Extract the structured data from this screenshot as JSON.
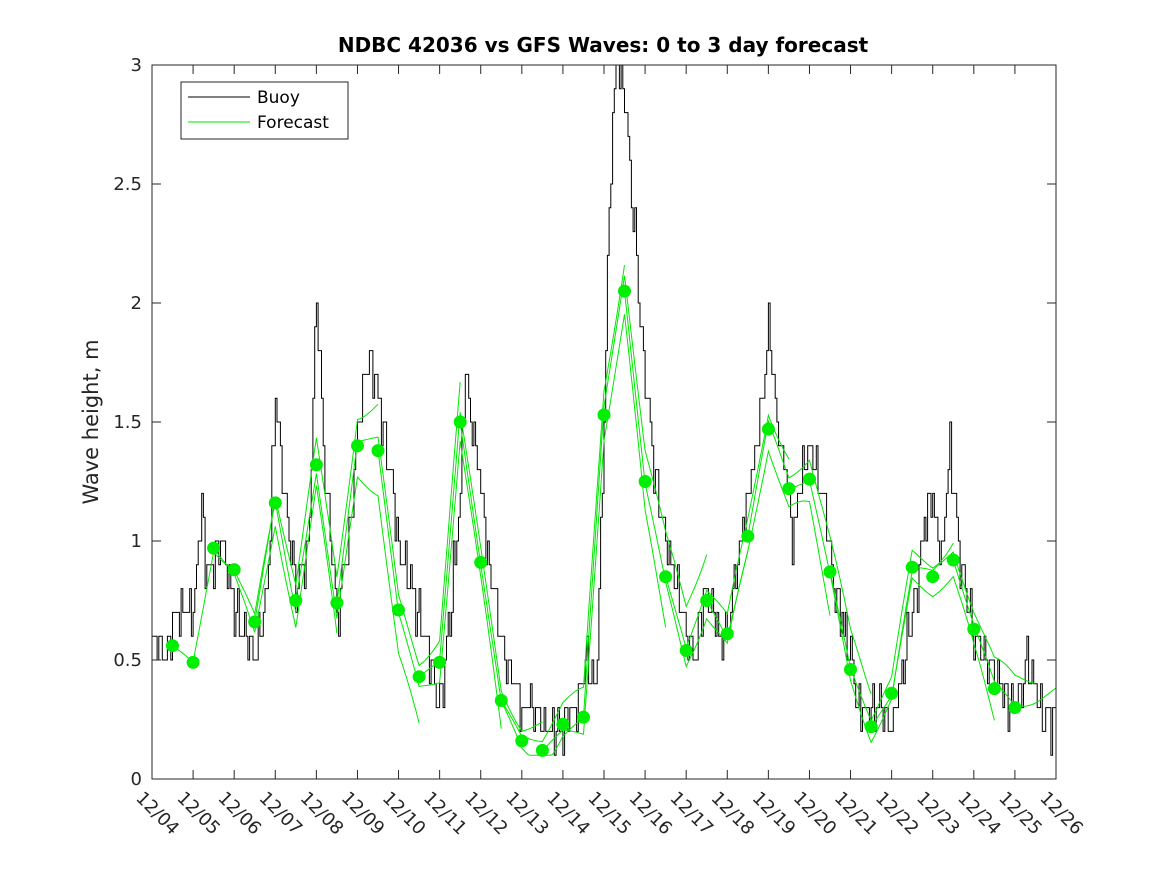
{
  "chart_data": {
    "type": "line",
    "title": "NDBC 42036 vs GFS Waves: 0 to 3 day forecast",
    "xlabel": "",
    "ylabel": "Wave height, m",
    "xlim": [
      0,
      22
    ],
    "ylim": [
      0,
      3
    ],
    "yticks": [
      0,
      0.5,
      1,
      1.5,
      2,
      2.5,
      3
    ],
    "xtick_labels": [
      "12/04",
      "12/05",
      "12/06",
      "12/07",
      "12/08",
      "12/09",
      "12/10",
      "12/11",
      "12/12",
      "12/13",
      "12/14",
      "12/15",
      "12/16",
      "12/17",
      "12/18",
      "12/19",
      "12/20",
      "12/21",
      "12/22",
      "12/23",
      "12/24",
      "12/25",
      "12/26"
    ],
    "legend": {
      "position": "top-left",
      "entries": [
        {
          "name": "Buoy",
          "color": "#000000"
        },
        {
          "name": "Forecast",
          "color": "#00e600"
        }
      ]
    },
    "colors": {
      "buoy": "#000000",
      "forecast": "#00e600",
      "marker": "#00ee00"
    },
    "buoy_anchors": [
      [
        0,
        0.6
      ],
      [
        0.3,
        0.5
      ],
      [
        0.6,
        0.7
      ],
      [
        1.0,
        0.7
      ],
      [
        1.1,
        0.9
      ],
      [
        1.2,
        1.2
      ],
      [
        1.3,
        0.9
      ],
      [
        1.5,
        0.9
      ],
      [
        1.7,
        1.0
      ],
      [
        2.0,
        0.7
      ],
      [
        2.3,
        0.6
      ],
      [
        2.5,
        0.5
      ],
      [
        2.8,
        0.8
      ],
      [
        3.0,
        1.6
      ],
      [
        3.2,
        1.2
      ],
      [
        3.5,
        0.8
      ],
      [
        3.8,
        1.0
      ],
      [
        4.0,
        2.0
      ],
      [
        4.2,
        1.3
      ],
      [
        4.5,
        0.7
      ],
      [
        4.8,
        1.0
      ],
      [
        5.0,
        1.5
      ],
      [
        5.3,
        1.8
      ],
      [
        5.5,
        1.6
      ],
      [
        5.8,
        1.3
      ],
      [
        6.0,
        1.0
      ],
      [
        6.3,
        0.8
      ],
      [
        6.6,
        0.6
      ],
      [
        7.0,
        0.3
      ],
      [
        7.2,
        0.6
      ],
      [
        7.5,
        1.2
      ],
      [
        7.6,
        1.7
      ],
      [
        7.8,
        1.5
      ],
      [
        8.0,
        1.2
      ],
      [
        8.3,
        0.8
      ],
      [
        8.6,
        0.5
      ],
      [
        9.0,
        0.3
      ],
      [
        9.3,
        0.3
      ],
      [
        9.6,
        0.2
      ],
      [
        10.0,
        0.2
      ],
      [
        10.3,
        0.3
      ],
      [
        10.6,
        0.5
      ],
      [
        10.8,
        0.4
      ],
      [
        11.0,
        1.5
      ],
      [
        11.15,
        2.6
      ],
      [
        11.3,
        3.0
      ],
      [
        11.5,
        2.9
      ],
      [
        11.7,
        2.4
      ],
      [
        11.9,
        1.9
      ],
      [
        12.2,
        1.3
      ],
      [
        12.5,
        1.0
      ],
      [
        12.8,
        0.8
      ],
      [
        13.0,
        0.6
      ],
      [
        13.2,
        0.5
      ],
      [
        13.5,
        0.8
      ],
      [
        13.8,
        0.6
      ],
      [
        14.0,
        0.6
      ],
      [
        14.3,
        1.0
      ],
      [
        14.6,
        1.3
      ],
      [
        14.8,
        1.5
      ],
      [
        15.0,
        1.9
      ],
      [
        15.2,
        1.5
      ],
      [
        15.4,
        1.3
      ],
      [
        15.6,
        1.0
      ],
      [
        15.8,
        1.3
      ],
      [
        16.0,
        1.4
      ],
      [
        16.3,
        1.2
      ],
      [
        16.6,
        0.8
      ],
      [
        16.9,
        0.6
      ],
      [
        17.2,
        0.3
      ],
      [
        17.6,
        0.3
      ],
      [
        17.8,
        0.3
      ],
      [
        18.0,
        0.2
      ],
      [
        18.3,
        0.5
      ],
      [
        18.6,
        0.8
      ],
      [
        18.8,
        1.1
      ],
      [
        19.0,
        1.2
      ],
      [
        19.2,
        0.9
      ],
      [
        19.4,
        1.4
      ],
      [
        19.6,
        1.0
      ],
      [
        19.8,
        0.8
      ],
      [
        20.0,
        0.6
      ],
      [
        20.3,
        0.5
      ],
      [
        20.6,
        0.4
      ],
      [
        21.0,
        0.3
      ],
      [
        21.3,
        0.5
      ],
      [
        21.6,
        0.3
      ],
      [
        22.0,
        0.2
      ]
    ],
    "forecast_points": [
      [
        0.5,
        0.56
      ],
      [
        1.0,
        0.49
      ],
      [
        1.5,
        0.97
      ],
      [
        2.0,
        0.88
      ],
      [
        2.5,
        0.66
      ],
      [
        3.0,
        1.16
      ],
      [
        3.5,
        0.75
      ],
      [
        4.0,
        1.32
      ],
      [
        4.5,
        0.74
      ],
      [
        5.0,
        1.4
      ],
      [
        5.5,
        1.38
      ],
      [
        6.0,
        0.71
      ],
      [
        6.5,
        0.43
      ],
      [
        7.0,
        0.49
      ],
      [
        7.5,
        1.5
      ],
      [
        8.0,
        0.91
      ],
      [
        8.5,
        0.33
      ],
      [
        9.0,
        0.16
      ],
      [
        9.5,
        0.12
      ],
      [
        10.0,
        0.23
      ],
      [
        10.5,
        0.26
      ],
      [
        11.0,
        1.53
      ],
      [
        11.5,
        2.05
      ],
      [
        12.0,
        1.25
      ],
      [
        12.5,
        0.85
      ],
      [
        13.0,
        0.54
      ],
      [
        13.5,
        0.75
      ],
      [
        14.0,
        0.61
      ],
      [
        14.5,
        1.02
      ],
      [
        15.0,
        1.47
      ],
      [
        15.5,
        1.22
      ],
      [
        16.0,
        1.26
      ],
      [
        16.5,
        0.87
      ],
      [
        17.0,
        0.46
      ],
      [
        17.5,
        0.22
      ],
      [
        18.0,
        0.36
      ],
      [
        18.5,
        0.89
      ],
      [
        19.0,
        0.85
      ],
      [
        19.5,
        0.92
      ],
      [
        20.0,
        0.63
      ],
      [
        20.5,
        0.38
      ],
      [
        21.0,
        0.3
      ]
    ],
    "forecast_runs": [
      {
        "start": 0.5,
        "end": 3.5,
        "offset": 0.0,
        "phase": 0.0
      },
      {
        "start": 1.5,
        "end": 4.5,
        "offset": -0.05,
        "phase": 1.3
      },
      {
        "start": 2.5,
        "end": 5.5,
        "offset": 0.06,
        "phase": 2.1
      },
      {
        "start": 3.5,
        "end": 6.5,
        "offset": -0.08,
        "phase": 0.7
      },
      {
        "start": 4.5,
        "end": 7.5,
        "offset": 0.04,
        "phase": 3.2
      },
      {
        "start": 5.5,
        "end": 8.5,
        "offset": -0.04,
        "phase": 1.9
      },
      {
        "start": 6.5,
        "end": 9.5,
        "offset": 0.03,
        "phase": 2.6
      },
      {
        "start": 7.5,
        "end": 10.5,
        "offset": -0.02,
        "phase": 0.4
      },
      {
        "start": 8.5,
        "end": 11.5,
        "offset": 0.05,
        "phase": 1.1
      },
      {
        "start": 9.5,
        "end": 12.5,
        "offset": -0.06,
        "phase": 2.8
      },
      {
        "start": 10.5,
        "end": 13.5,
        "offset": 0.08,
        "phase": 0.9
      },
      {
        "start": 11.5,
        "end": 14.5,
        "offset": -0.03,
        "phase": 1.6
      },
      {
        "start": 12.5,
        "end": 15.5,
        "offset": 0.04,
        "phase": 2.3
      },
      {
        "start": 13.5,
        "end": 16.5,
        "offset": -0.05,
        "phase": 3.0
      },
      {
        "start": 14.5,
        "end": 17.5,
        "offset": 0.06,
        "phase": 0.2
      },
      {
        "start": 15.5,
        "end": 18.5,
        "offset": -0.02,
        "phase": 1.4
      },
      {
        "start": 16.5,
        "end": 19.5,
        "offset": 0.03,
        "phase": 2.0
      },
      {
        "start": 17.5,
        "end": 20.5,
        "offset": -0.04,
        "phase": 2.7
      },
      {
        "start": 18.5,
        "end": 21.5,
        "offset": 0.05,
        "phase": 0.6
      },
      {
        "start": 19.5,
        "end": 22.0,
        "offset": 0.02,
        "phase": 1.8
      }
    ]
  }
}
